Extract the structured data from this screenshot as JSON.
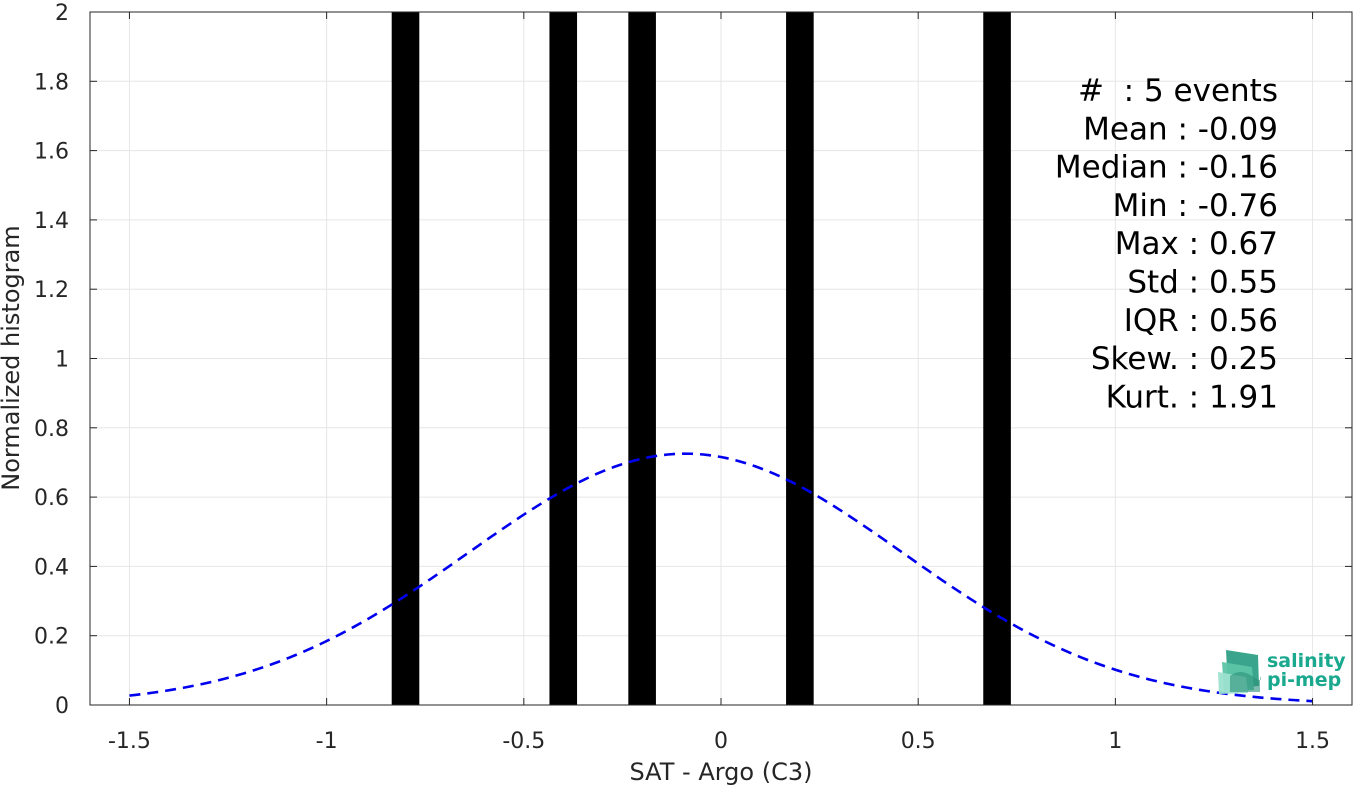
{
  "chart_data": {
    "type": "bar",
    "title": "",
    "xlabel": "SAT - Argo (C3)",
    "ylabel": "Normalized histogram",
    "xlim": [
      -1.6,
      1.6
    ],
    "ylim": [
      0,
      2
    ],
    "xticks": [
      -1.5,
      -1,
      -0.5,
      0,
      0.5,
      1,
      1.5
    ],
    "xtick_labels": [
      "-1.5",
      "-1",
      "-0.5",
      "0",
      "0.5",
      "1",
      "1.5"
    ],
    "yticks": [
      0,
      0.2,
      0.4,
      0.6,
      0.8,
      1,
      1.2,
      1.4,
      1.6,
      1.8,
      2
    ],
    "ytick_labels": [
      "0",
      "0.2",
      "0.4",
      "0.6",
      "0.8",
      "1",
      "1.2",
      "1.4",
      "1.6",
      "1.8",
      "2"
    ],
    "grid": true,
    "bar_color": "#000000",
    "bars": [
      {
        "x": -0.8,
        "width": 0.07,
        "value": 2
      },
      {
        "x": -0.4,
        "width": 0.07,
        "value": 2
      },
      {
        "x": -0.2,
        "width": 0.07,
        "value": 2
      },
      {
        "x": 0.2,
        "width": 0.07,
        "value": 2
      },
      {
        "x": 0.7,
        "width": 0.07,
        "value": 2
      }
    ],
    "fit_curve": {
      "style": "dashed",
      "color": "#0000ee",
      "mean": -0.09,
      "std": 0.55,
      "x_range": [
        -1.5,
        1.5
      ]
    },
    "stats": [
      "#  : 5 events",
      "Mean : -0.09",
      "Median : -0.16",
      "Min : -0.76",
      "Max : 0.67",
      "Std : 0.55",
      "IQR : 0.56",
      "Skew. : 0.25",
      "Kurt. : 1.91"
    ]
  },
  "logo": {
    "line1": "salinity",
    "line2": "pi-mep",
    "color": "#1aa88e"
  }
}
